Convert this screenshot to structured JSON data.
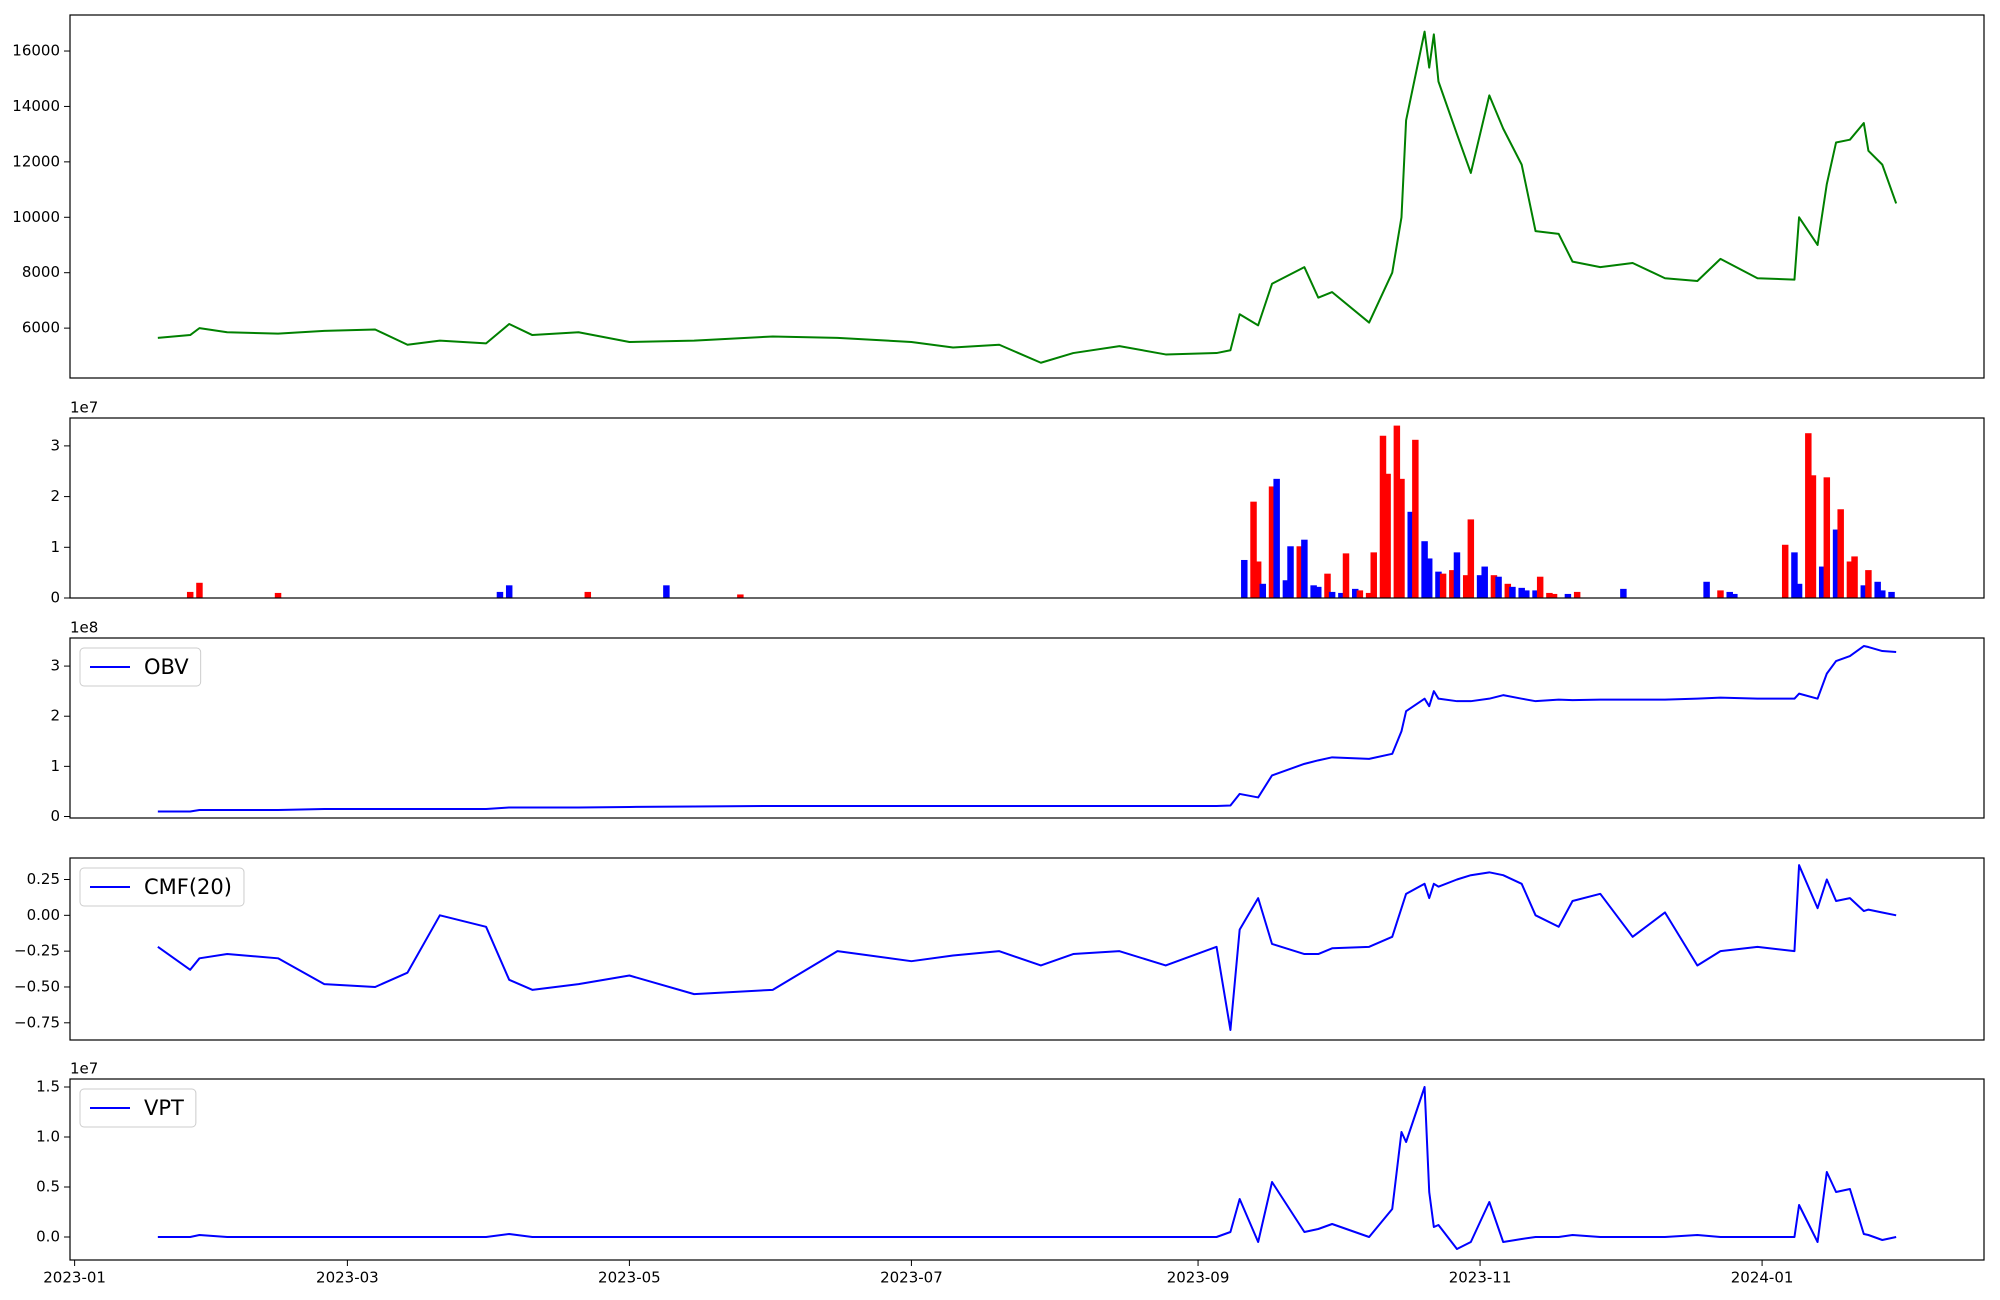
{
  "chart_data": [
    {
      "type": "line",
      "x": [
        "2023-01-19",
        "2023-01-26",
        "2023-01-28",
        "2023-02-03",
        "2023-02-14",
        "2023-02-24",
        "2023-03-07",
        "2023-03-14",
        "2023-03-21",
        "2023-03-31",
        "2023-04-05",
        "2023-04-10",
        "2023-04-20",
        "2023-05-01",
        "2023-05-15",
        "2023-06-01",
        "2023-06-15",
        "2023-07-01",
        "2023-07-10",
        "2023-07-20",
        "2023-07-29",
        "2023-08-05",
        "2023-08-15",
        "2023-08-25",
        "2023-09-05",
        "2023-09-08",
        "2023-09-10",
        "2023-09-14",
        "2023-09-17",
        "2023-09-24",
        "2023-09-27",
        "2023-09-30",
        "2023-10-08",
        "2023-10-13",
        "2023-10-15",
        "2023-10-16",
        "2023-10-20",
        "2023-10-21",
        "2023-10-22",
        "2023-10-23",
        "2023-10-27",
        "2023-10-30",
        "2023-11-03",
        "2023-11-06",
        "2023-11-10",
        "2023-11-13",
        "2023-11-18",
        "2023-11-21",
        "2023-11-27",
        "2023-12-04",
        "2023-12-11",
        "2023-12-18",
        "2023-12-23",
        "2023-12-31",
        "2024-01-08",
        "2024-01-09",
        "2024-01-13",
        "2024-01-15",
        "2024-01-17",
        "2024-01-20",
        "2024-01-23",
        "2024-01-24",
        "2024-01-27",
        "2024-01-30"
      ],
      "series": [
        {
          "color": "#008000",
          "values": [
            5650,
            5750,
            6000,
            5850,
            5800,
            5900,
            5950,
            5400,
            5550,
            5450,
            6150,
            5750,
            5850,
            5500,
            5550,
            5700,
            5650,
            5500,
            5300,
            5400,
            4750,
            5100,
            5350,
            5050,
            5100,
            5200,
            6500,
            6100,
            7600,
            8200,
            7100,
            7300,
            6200,
            8000,
            10000,
            13500,
            16700,
            15400,
            16600,
            14900,
            13000,
            11600,
            14400,
            13200,
            11900,
            9500,
            9400,
            8400,
            8200,
            8350,
            7800,
            7700,
            8500,
            7800,
            7750,
            10000,
            9000,
            11200,
            12700,
            12800,
            13400,
            12400,
            11900,
            10500
          ]
        }
      ],
      "xlim": [
        "2022-12-31",
        "2024-02-18"
      ],
      "ylim": [
        4200,
        17300
      ],
      "yticks": [
        6000,
        8000,
        10000,
        12000,
        14000,
        16000
      ]
    },
    {
      "type": "bar",
      "x": [
        "2023-01-26",
        "2023-01-28",
        "2023-02-14",
        "2023-04-03",
        "2023-04-05",
        "2023-04-22",
        "2023-05-09",
        "2023-05-25",
        "2023-09-11",
        "2023-09-13",
        "2023-09-14",
        "2023-09-15",
        "2023-09-17",
        "2023-09-18",
        "2023-09-20",
        "2023-09-21",
        "2023-09-23",
        "2023-09-24",
        "2023-09-26",
        "2023-09-27",
        "2023-09-29",
        "2023-09-30",
        "2023-10-02",
        "2023-10-03",
        "2023-10-05",
        "2023-10-06",
        "2023-10-08",
        "2023-10-09",
        "2023-10-11",
        "2023-10-12",
        "2023-10-14",
        "2023-10-15",
        "2023-10-17",
        "2023-10-18",
        "2023-10-20",
        "2023-10-21",
        "2023-10-23",
        "2023-10-24",
        "2023-10-26",
        "2023-10-27",
        "2023-10-29",
        "2023-10-30",
        "2023-11-01",
        "2023-11-02",
        "2023-11-04",
        "2023-11-05",
        "2023-11-07",
        "2023-11-08",
        "2023-11-10",
        "2023-11-11",
        "2023-11-13",
        "2023-11-14",
        "2023-11-16",
        "2023-11-17",
        "2023-11-20",
        "2023-11-22",
        "2023-12-02",
        "2023-12-20",
        "2023-12-23",
        "2023-12-25",
        "2023-12-26",
        "2024-01-06",
        "2024-01-08",
        "2024-01-09",
        "2024-01-11",
        "2024-01-12",
        "2024-01-14",
        "2024-01-15",
        "2024-01-17",
        "2024-01-18",
        "2024-01-20",
        "2024-01-21",
        "2024-01-23",
        "2024-01-24",
        "2024-01-26",
        "2024-01-27",
        "2024-01-29"
      ],
      "values": [
        0.12,
        0.3,
        0.1,
        0.12,
        0.25,
        0.12,
        0.25,
        0.07,
        0.75,
        1.9,
        0.72,
        0.28,
        2.2,
        2.35,
        0.35,
        1.02,
        1.02,
        1.15,
        0.25,
        0.22,
        0.48,
        0.12,
        0.1,
        0.88,
        0.18,
        0.15,
        0.1,
        0.9,
        3.2,
        2.45,
        3.4,
        2.35,
        1.7,
        3.12,
        1.12,
        0.78,
        0.52,
        0.48,
        0.55,
        0.9,
        0.45,
        1.55,
        0.45,
        0.62,
        0.45,
        0.42,
        0.28,
        0.22,
        0.2,
        0.15,
        0.15,
        0.42,
        0.1,
        0.08,
        0.08,
        0.12,
        0.18,
        0.32,
        0.15,
        0.12,
        0.08,
        1.05,
        0.9,
        0.28,
        3.25,
        2.42,
        0.62,
        2.38,
        1.35,
        1.75,
        0.72,
        0.82,
        0.25,
        0.55,
        0.32,
        0.15,
        0.12
      ],
      "colors": [
        "red",
        "red",
        "red",
        "blue",
        "blue",
        "red",
        "blue",
        "red",
        "blue",
        "red",
        "red",
        "blue",
        "red",
        "blue",
        "blue",
        "blue",
        "red",
        "blue",
        "blue",
        "blue",
        "red",
        "blue",
        "blue",
        "red",
        "blue",
        "red",
        "red",
        "red",
        "red",
        "red",
        "red",
        "red",
        "blue",
        "red",
        "blue",
        "blue",
        "blue",
        "red",
        "red",
        "blue",
        "red",
        "red",
        "blue",
        "blue",
        "red",
        "blue",
        "red",
        "blue",
        "blue",
        "blue",
        "blue",
        "red",
        "red",
        "red",
        "blue",
        "red",
        "blue",
        "blue",
        "red",
        "blue",
        "blue",
        "red",
        "blue",
        "blue",
        "red",
        "red",
        "blue",
        "red",
        "blue",
        "red",
        "red",
        "red",
        "blue",
        "red",
        "blue",
        "blue",
        "blue"
      ],
      "xlim": [
        "2022-12-31",
        "2024-02-18"
      ],
      "ylim": [
        0,
        3.55
      ],
      "yticks": [
        0,
        1,
        2,
        3
      ],
      "offset_label": "1e7"
    },
    {
      "type": "line",
      "legend": "upper left",
      "x": [
        "2023-01-19",
        "2023-01-26",
        "2023-01-28",
        "2023-02-03",
        "2023-02-14",
        "2023-02-24",
        "2023-03-07",
        "2023-03-14",
        "2023-03-21",
        "2023-03-31",
        "2023-04-05",
        "2023-04-10",
        "2023-04-20",
        "2023-05-01",
        "2023-05-15",
        "2023-06-01",
        "2023-06-15",
        "2023-07-01",
        "2023-07-10",
        "2023-07-20",
        "2023-07-29",
        "2023-08-05",
        "2023-08-15",
        "2023-08-25",
        "2023-09-05",
        "2023-09-08",
        "2023-09-10",
        "2023-09-14",
        "2023-09-17",
        "2023-09-24",
        "2023-09-27",
        "2023-09-30",
        "2023-10-08",
        "2023-10-13",
        "2023-10-15",
        "2023-10-16",
        "2023-10-20",
        "2023-10-21",
        "2023-10-22",
        "2023-10-23",
        "2023-10-27",
        "2023-10-30",
        "2023-11-03",
        "2023-11-06",
        "2023-11-10",
        "2023-11-13",
        "2023-11-18",
        "2023-11-21",
        "2023-11-27",
        "2023-12-04",
        "2023-12-11",
        "2023-12-18",
        "2023-12-23",
        "2023-12-31",
        "2024-01-08",
        "2024-01-09",
        "2024-01-13",
        "2024-01-15",
        "2024-01-17",
        "2024-01-20",
        "2024-01-23",
        "2024-01-24",
        "2024-01-27",
        "2024-01-30"
      ],
      "series": [
        {
          "name": "OBV",
          "color": "#0000ff",
          "values": [
            0.1,
            0.1,
            0.13,
            0.13,
            0.13,
            0.15,
            0.15,
            0.15,
            0.15,
            0.15,
            0.18,
            0.18,
            0.18,
            0.19,
            0.2,
            0.21,
            0.21,
            0.21,
            0.21,
            0.21,
            0.21,
            0.21,
            0.21,
            0.21,
            0.21,
            0.22,
            0.45,
            0.38,
            0.82,
            1.05,
            1.12,
            1.18,
            1.15,
            1.25,
            1.7,
            2.1,
            2.35,
            2.2,
            2.5,
            2.35,
            2.3,
            2.3,
            2.35,
            2.42,
            2.35,
            2.3,
            2.33,
            2.32,
            2.33,
            2.33,
            2.33,
            2.35,
            2.37,
            2.35,
            2.35,
            2.45,
            2.35,
            2.85,
            3.1,
            3.2,
            3.4,
            3.38,
            3.3,
            3.28
          ]
        }
      ],
      "xlim": [
        "2022-12-31",
        "2024-02-18"
      ],
      "ylim": [
        -0.03,
        3.56
      ],
      "yticks": [
        0,
        1,
        2,
        3
      ],
      "offset_label": "1e8"
    },
    {
      "type": "line",
      "legend": "upper left",
      "x": [
        "2023-01-19",
        "2023-01-26",
        "2023-01-28",
        "2023-02-03",
        "2023-02-14",
        "2023-02-24",
        "2023-03-07",
        "2023-03-14",
        "2023-03-21",
        "2023-03-31",
        "2023-04-05",
        "2023-04-10",
        "2023-04-20",
        "2023-05-01",
        "2023-05-15",
        "2023-06-01",
        "2023-06-15",
        "2023-07-01",
        "2023-07-10",
        "2023-07-20",
        "2023-07-29",
        "2023-08-05",
        "2023-08-15",
        "2023-08-25",
        "2023-09-05",
        "2023-09-08",
        "2023-09-10",
        "2023-09-14",
        "2023-09-17",
        "2023-09-24",
        "2023-09-27",
        "2023-09-30",
        "2023-10-08",
        "2023-10-13",
        "2023-10-15",
        "2023-10-16",
        "2023-10-20",
        "2023-10-21",
        "2023-10-22",
        "2023-10-23",
        "2023-10-27",
        "2023-10-30",
        "2023-11-03",
        "2023-11-06",
        "2023-11-10",
        "2023-11-13",
        "2023-11-18",
        "2023-11-21",
        "2023-11-27",
        "2023-12-04",
        "2023-12-11",
        "2023-12-18",
        "2023-12-23",
        "2023-12-31",
        "2024-01-08",
        "2024-01-09",
        "2024-01-13",
        "2024-01-15",
        "2024-01-17",
        "2024-01-20",
        "2024-01-23",
        "2024-01-24",
        "2024-01-27",
        "2024-01-30"
      ],
      "series": [
        {
          "name": "CMF(20)",
          "color": "#0000ff",
          "values": [
            -0.22,
            -0.38,
            -0.3,
            -0.27,
            -0.3,
            -0.48,
            -0.5,
            -0.4,
            0.0,
            -0.08,
            -0.45,
            -0.52,
            -0.48,
            -0.42,
            -0.55,
            -0.52,
            -0.25,
            -0.32,
            -0.28,
            -0.25,
            -0.35,
            -0.27,
            -0.25,
            -0.35,
            -0.22,
            -0.8,
            -0.1,
            0.12,
            -0.2,
            -0.27,
            -0.27,
            -0.23,
            -0.22,
            -0.15,
            0.05,
            0.15,
            0.22,
            0.12,
            0.22,
            0.2,
            0.25,
            0.28,
            0.3,
            0.28,
            0.22,
            0.0,
            -0.08,
            0.1,
            0.15,
            -0.15,
            0.02,
            -0.35,
            -0.25,
            -0.22,
            -0.25,
            0.35,
            0.05,
            0.25,
            0.1,
            0.12,
            0.03,
            0.04,
            0.02,
            0.0
          ]
        }
      ],
      "xlim": [
        "2022-12-31",
        "2024-02-18"
      ],
      "ylim": [
        -0.87,
        0.4
      ],
      "yticks": [
        {
          "value": -0.75,
          "label": "−0.75"
        },
        {
          "value": -0.5,
          "label": "−0.50"
        },
        {
          "value": -0.25,
          "label": "−0.25"
        },
        {
          "value": 0,
          "label": "0.00"
        },
        0.25
      ]
    },
    {
      "type": "line",
      "legend": "upper left",
      "x": [
        "2023-01-19",
        "2023-01-26",
        "2023-01-28",
        "2023-02-03",
        "2023-02-14",
        "2023-02-24",
        "2023-03-07",
        "2023-03-14",
        "2023-03-21",
        "2023-03-31",
        "2023-04-05",
        "2023-04-10",
        "2023-04-20",
        "2023-05-01",
        "2023-05-15",
        "2023-06-01",
        "2023-06-15",
        "2023-07-01",
        "2023-07-10",
        "2023-07-20",
        "2023-07-29",
        "2023-08-05",
        "2023-08-15",
        "2023-08-25",
        "2023-09-05",
        "2023-09-08",
        "2023-09-10",
        "2023-09-14",
        "2023-09-17",
        "2023-09-24",
        "2023-09-27",
        "2023-09-30",
        "2023-10-08",
        "2023-10-13",
        "2023-10-15",
        "2023-10-16",
        "2023-10-20",
        "2023-10-21",
        "2023-10-22",
        "2023-10-23",
        "2023-10-27",
        "2023-10-30",
        "2023-11-03",
        "2023-11-06",
        "2023-11-10",
        "2023-11-13",
        "2023-11-18",
        "2023-11-21",
        "2023-11-27",
        "2023-12-04",
        "2023-12-11",
        "2023-12-18",
        "2023-12-23",
        "2023-12-31",
        "2024-01-08",
        "2024-01-09",
        "2024-01-13",
        "2024-01-15",
        "2024-01-17",
        "2024-01-20",
        "2024-01-23",
        "2024-01-24",
        "2024-01-27",
        "2024-01-30"
      ],
      "series": [
        {
          "name": "VPT",
          "color": "#0000ff",
          "values": [
            0,
            0,
            0.02,
            0,
            0,
            0,
            0,
            0,
            0,
            0,
            0.03,
            0,
            0,
            0,
            0,
            0,
            0,
            0,
            0,
            0,
            0,
            0,
            0,
            0,
            0,
            0.05,
            0.38,
            -0.05,
            0.55,
            0.05,
            0.08,
            0.13,
            0.0,
            0.28,
            1.05,
            0.95,
            1.5,
            0.45,
            0.1,
            0.12,
            -0.12,
            -0.05,
            0.35,
            -0.05,
            -0.02,
            0.0,
            0.0,
            0.02,
            0.0,
            0.0,
            0.0,
            0.02,
            0.0,
            0.0,
            0.0,
            0.32,
            -0.05,
            0.65,
            0.45,
            0.48,
            0.03,
            0.02,
            -0.03,
            0.0
          ]
        }
      ],
      "xlim": [
        "2022-12-31",
        "2024-02-18"
      ],
      "xticks": [
        {
          "value": "2023-01-01",
          "label": "2023-01"
        },
        {
          "value": "2023-03-01",
          "label": "2023-03"
        },
        {
          "value": "2023-05-01",
          "label": "2023-05"
        },
        {
          "value": "2023-07-01",
          "label": "2023-07"
        },
        {
          "value": "2023-09-01",
          "label": "2023-09"
        },
        {
          "value": "2023-11-01",
          "label": "2023-11"
        },
        {
          "value": "2024-01-01",
          "label": "2024-01"
        }
      ],
      "ylim": [
        -0.23,
        1.58
      ],
      "yticks": [
        {
          "value": 0,
          "label": "0.0"
        },
        0.5,
        {
          "value": 1,
          "label": "1.0"
        },
        1.5
      ],
      "offset_label": "1e7"
    }
  ]
}
